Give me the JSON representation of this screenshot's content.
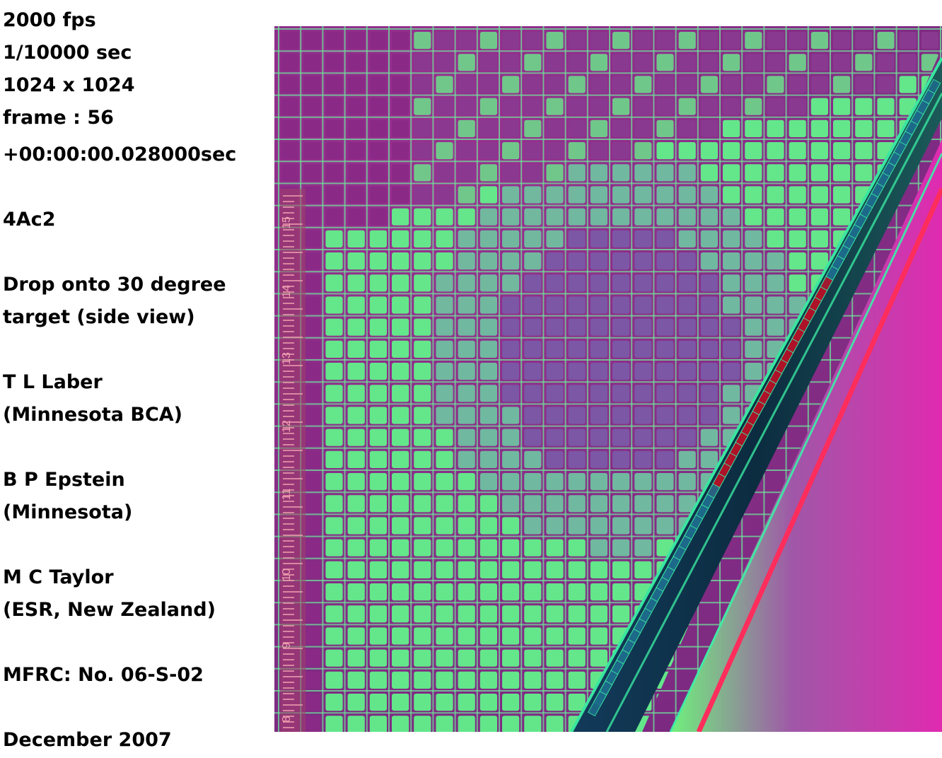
{
  "caption": {
    "lines": [
      "2000 fps",
      "1/10000 sec",
      "1024 x 1024",
      "frame : 56",
      "+00:00:00.028000sec",
      "4Ac2",
      "Drop onto 30 degree",
      "target (side view)",
      "T L Laber",
      "(Minnesota BCA)",
      "B P Epstein",
      "(Minnesota)",
      "M C Taylor",
      "(ESR, New Zealand)",
      "MFRC:  No. 06-S-02",
      "December 2007"
    ]
  },
  "image": {
    "description_colors": {
      "background": "#8a2a86",
      "cell_green": "#62f08a",
      "cell_purple": "#8a4fa0",
      "grid_line": "#6fe39a",
      "target_dark": "#0b2a3e",
      "target_cell_red": "#c0122a",
      "target_edge_green": "#39e6a0",
      "red_stripe": "#ff2d5c",
      "right_magenta": "#d22aa8",
      "right_green": "#7ff07a"
    },
    "ruler_labels": [
      "15",
      "14",
      "13",
      "12",
      "11",
      "10",
      "9",
      "8"
    ]
  }
}
